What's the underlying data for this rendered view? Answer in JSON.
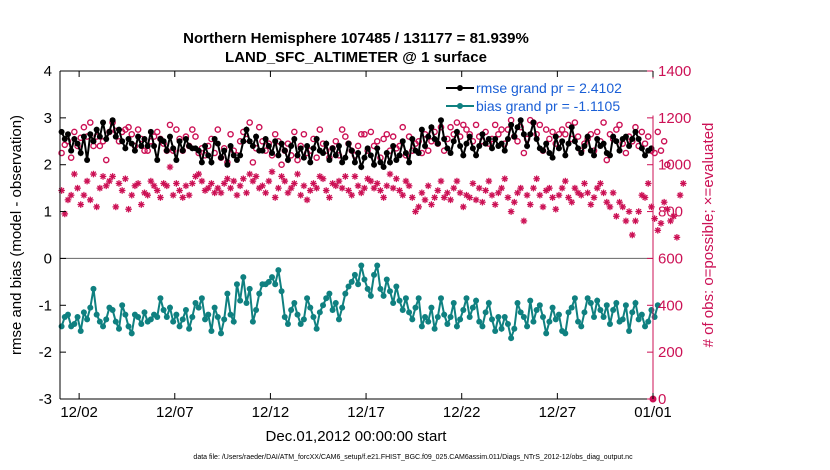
{
  "chart_data": {
    "type": "line",
    "title": "Northern Hemisphere 107485 / 131177 = 81.939%",
    "subtitle": "LAND_SFC_ALTIMETER @ 1 surface",
    "xlabel": "Dec.01,2012 00:00:00 start",
    "ylabel_left": "rmse and bias (model - observation)",
    "ylabel_right": "# of obs: o=possible; ×=evaluated",
    "footnote": "data file: /Users/raeder/DAI/ATM_forcXX/CAM6_setup/f.e21.FHIST_BGC.f09_025.CAM6assim.011/Diags_NTrS_2012-12/obs_diag_output.nc",
    "x_tick_labels": [
      "12/02",
      "12/07",
      "12/12",
      "12/17",
      "12/22",
      "12/27",
      "01/01"
    ],
    "x_tick_values": [
      2,
      7,
      12,
      17,
      22,
      27,
      32
    ],
    "xlim": [
      1.0,
      32.0
    ],
    "ylim_left": [
      -3,
      4
    ],
    "y_ticks_left": [
      "-3",
      "-2",
      "-1",
      "0",
      "1",
      "2",
      "3",
      "4"
    ],
    "ylim_right": [
      0,
      1400
    ],
    "y_ticks_right": [
      "0",
      "200",
      "400",
      "600",
      "800",
      "1000",
      "1200",
      "1400"
    ],
    "colors": {
      "rmse": "#000000",
      "bias": "#0f8080",
      "obs": "#cc1155",
      "legend_text": "#1a5fd6",
      "zero_line": "#666666"
    },
    "series": [
      {
        "name": "rmse grand pr = 2.4102",
        "values": [
          2.7,
          2.55,
          2.65,
          2.3,
          2.55,
          2.45,
          2.25,
          2.6,
          2.1,
          2.65,
          2.5,
          2.75,
          2.6,
          2.9,
          2.55,
          2.7,
          2.95,
          2.6,
          2.75,
          2.5,
          2.35,
          2.55,
          2.45,
          2.3,
          2.6,
          2.4,
          2.55,
          2.4,
          2.7,
          2.4,
          2.1,
          2.55,
          2.5,
          2.3,
          2.6,
          2.35,
          2.1,
          2.5,
          2.3,
          2.55,
          2.4,
          2.35,
          2.35,
          2.3,
          2.05,
          2.4,
          2.2,
          2.05,
          2.55,
          2.45,
          2.15,
          2.3,
          2.0,
          2.4,
          2.2,
          2.1,
          2.2,
          2.5,
          2.75,
          2.5,
          2.4,
          2.6,
          2.3,
          2.3,
          2.55,
          2.4,
          2.25,
          2.5,
          2.2,
          2.45,
          2.3,
          2.1,
          2.4,
          2.55,
          2.2,
          2.35,
          2.15,
          2.4,
          2.05,
          2.35,
          2.55,
          2.3,
          2.25,
          2.45,
          2.1,
          2.35,
          2.2,
          2.4,
          2.05,
          2.15,
          2.45,
          2.3,
          2.05,
          2.25,
          1.95,
          2.15,
          2.35,
          2.2,
          2.0,
          2.35,
          2.05,
          1.95,
          2.25,
          2.05,
          2.4,
          2.1,
          2.2,
          2.5,
          2.25,
          2.05,
          2.55,
          2.3,
          2.25,
          2.75,
          2.4,
          2.6,
          2.8,
          2.55,
          2.45,
          2.95,
          2.55,
          2.35,
          2.25,
          2.5,
          2.7,
          2.4,
          2.2,
          2.45,
          2.6,
          2.35,
          2.2,
          2.4,
          2.65,
          2.45,
          2.55,
          2.35,
          2.55,
          2.4,
          2.45,
          2.3,
          2.55,
          2.85,
          2.6,
          2.8,
          2.95,
          2.65,
          2.4,
          2.65,
          2.9,
          2.55,
          2.35,
          2.3,
          2.45,
          2.25,
          2.15,
          2.6,
          2.35,
          2.5,
          2.2,
          2.45,
          2.8,
          2.5,
          2.35,
          2.25,
          2.4,
          2.6,
          2.3,
          2.2,
          2.55,
          2.4,
          2.45,
          2.25,
          2.2,
          2.6,
          2.5,
          2.3,
          2.55,
          2.6,
          2.4,
          2.55,
          2.7,
          2.55,
          2.35,
          2.2,
          2.3,
          2.35
        ]
      },
      {
        "name": "bias grand pr = -1.1105",
        "values": [
          -1.45,
          -1.25,
          -1.2,
          -1.45,
          -1.4,
          -1.25,
          -1.55,
          -1.15,
          -1.3,
          -1.05,
          -0.65,
          -1.2,
          -1.35,
          -1.45,
          -1.3,
          -1.05,
          -1.1,
          -1.35,
          -1.5,
          -1.0,
          -1.2,
          -1.45,
          -1.6,
          -1.2,
          -1.25,
          -1.4,
          -1.15,
          -1.35,
          -1.3,
          -1.2,
          -1.25,
          -0.85,
          -1.1,
          -1.25,
          -1.05,
          -1.35,
          -1.2,
          -1.45,
          -1.3,
          -1.1,
          -1.5,
          -1.25,
          -0.95,
          -1.05,
          -0.85,
          -1.3,
          -1.2,
          -1.55,
          -1.05,
          -1.25,
          -1.6,
          -1.3,
          -0.75,
          -1.2,
          -1.35,
          -0.55,
          -0.9,
          -0.4,
          -0.95,
          -0.65,
          -1.35,
          -1.1,
          -0.75,
          -0.55,
          -0.55,
          -0.5,
          -0.4,
          -0.55,
          -0.25,
          -0.7,
          -1.25,
          -1.4,
          -1.1,
          -0.95,
          -1.2,
          -1.4,
          -1.3,
          -0.85,
          -1.05,
          -1.25,
          -1.5,
          -1.15,
          -1.0,
          -0.85,
          -0.75,
          -1.1,
          -0.95,
          -1.3,
          -1.05,
          -0.75,
          -0.6,
          -0.5,
          -0.35,
          -0.55,
          -0.15,
          -0.45,
          -0.65,
          -0.8,
          -0.35,
          -0.15,
          -0.65,
          -0.8,
          -0.45,
          -0.7,
          -0.95,
          -0.6,
          -0.9,
          -1.1,
          -0.85,
          -1.15,
          -1.3,
          -1.05,
          -0.85,
          -1.45,
          -1.25,
          -1.35,
          -1.05,
          -1.5,
          -1.25,
          -0.85,
          -1.2,
          -1.4,
          -1.25,
          -0.95,
          -1.45,
          -1.3,
          -1.1,
          -0.85,
          -1.25,
          -1.05,
          -0.9,
          -1.35,
          -1.45,
          -1.15,
          -0.95,
          -1.3,
          -1.55,
          -1.25,
          -1.5,
          -1.25,
          -1.4,
          -1.7,
          -1.5,
          -0.95,
          -1.15,
          -1.25,
          -1.45,
          -0.9,
          -1.35,
          -1.1,
          -1.0,
          -1.25,
          -1.6,
          -1.35,
          -1.05,
          -1.3,
          -1.2,
          -1.55,
          -1.6,
          -1.15,
          -1.05,
          -0.85,
          -1.35,
          -1.45,
          -1.15,
          -0.85,
          -0.95,
          -1.25,
          -0.9,
          -1.1,
          -1.25,
          -1.0,
          -1.4,
          -1.1,
          -0.95,
          -1.35,
          -1.3,
          -1.0,
          -1.55,
          -1.15,
          -0.95,
          -1.3,
          -1.2,
          -1.45,
          -1.35,
          -1.1,
          -1.25,
          -1.0
        ]
      },
      {
        "name": "possible obs",
        "values": [
          1050,
          1085,
          1100,
          1030,
          1140,
          1080,
          1115,
          1160,
          1120,
          1180,
          1080,
          1120,
          1080,
          1100,
          1020,
          1140,
          1180,
          1145,
          1100,
          1140,
          1150,
          1160,
          1130,
          1080,
          1150,
          1110,
          1060,
          1060,
          1100,
          1120,
          1140,
          1110,
          1090,
          1060,
          1170,
          1060,
          1150,
          1110,
          1060,
          1120,
          1080,
          1150,
          1120,
          1050,
          1070,
          1040,
          1080,
          1110,
          1050,
          1150,
          1030,
          1070,
          1010,
          1130,
          1060,
          1040,
          1100,
          1140,
          1110,
          1180,
          1010,
          1070,
          1160,
          1100,
          1060,
          1090,
          1040,
          1130,
          1100,
          1000,
          1060,
          1090,
          1040,
          1140,
          1020,
          1080,
          1130,
          1050,
          1060,
          1110,
          1030,
          1150,
          1090,
          1060,
          1030,
          1070,
          1100,
          1040,
          1150,
          1120,
          1090,
          1060,
          1040,
          1080,
          1130,
          1130,
          1060,
          1140,
          1080,
          1100,
          1030,
          1110,
          1130,
          1060,
          1120,
          1070,
          1080,
          1160,
          1040,
          1120,
          1060,
          1090,
          1100,
          1050,
          1130,
          1060,
          1100,
          1140,
          1090,
          1160,
          1060,
          1110,
          1160,
          1130,
          1180,
          1120,
          1170,
          1150,
          1130,
          1100,
          1170,
          1120,
          1100,
          1140,
          1090,
          1110,
          1170,
          1130,
          1150,
          1090,
          1150,
          1190,
          1120,
          1100,
          1160,
          1050,
          1110,
          1190,
          1180,
          1130,
          1170,
          1060,
          1150,
          1110,
          1140,
          1090,
          1130,
          1150,
          1130,
          1170,
          1110,
          1180,
          1120,
          1060,
          1090,
          1110,
          1130,
          1060,
          1140,
          1100,
          1180,
          1020,
          1130,
          1110,
          1150,
          1170,
          1090,
          1050,
          1120,
          1100,
          1160,
          1080,
          1140,
          1090,
          1120,
          1060,
          1050,
          1140,
          1060,
          1100,
          1000
        ]
      },
      {
        "name": "evaluated obs",
        "values": [
          890,
          790,
          850,
          870,
          960,
          900,
          830,
          870,
          930,
          850,
          960,
          820,
          900,
          950,
          910,
          930,
          950,
          820,
          920,
          890,
          940,
          810,
          870,
          910,
          920,
          830,
          880,
          870,
          930,
          910,
          890,
          860,
          920,
          910,
          990,
          870,
          920,
          890,
          860,
          910,
          870,
          920,
          950,
          960,
          930,
          890,
          900,
          920,
          880,
          900,
          880,
          920,
          940,
          900,
          930,
          870,
          910,
          940,
          880,
          960,
          930,
          950,
          900,
          910,
          880,
          930,
          970,
          860,
          900,
          950,
          930,
          880,
          900,
          920,
          960,
          870,
          910,
          850,
          890,
          920,
          900,
          950,
          940,
          890,
          860,
          920,
          910,
          930,
          900,
          950,
          890,
          870,
          950,
          910,
          880,
          900,
          940,
          930,
          900,
          920,
          890,
          860,
          910,
          960,
          900,
          940,
          890,
          870,
          930,
          910,
          860,
          800,
          820,
          880,
          850,
          910,
          830,
          860,
          890,
          930,
          860,
          880,
          850,
          900,
          930,
          880,
          820,
          870,
          860,
          920,
          850,
          900,
          840,
          890,
          930,
          870,
          830,
          880,
          900,
          940,
          860,
          800,
          840,
          880,
          900,
          760,
          870,
          830,
          900,
          940,
          870,
          820,
          890,
          900,
          860,
          810,
          870,
          900,
          930,
          860,
          840,
          900,
          880,
          870,
          920,
          880,
          830,
          860,
          900,
          920,
          880,
          840,
          820,
          880,
          780,
          840,
          820,
          760,
          800,
          700,
          760,
          800,
          870,
          860,
          920,
          820,
          770,
          720,
          750,
          840,
          810,
          760,
          780,
          690,
          870,
          920
        ]
      }
    ],
    "legend": [
      "rmse grand pr = 2.4102",
      "bias grand pr = -1.1105"
    ]
  }
}
